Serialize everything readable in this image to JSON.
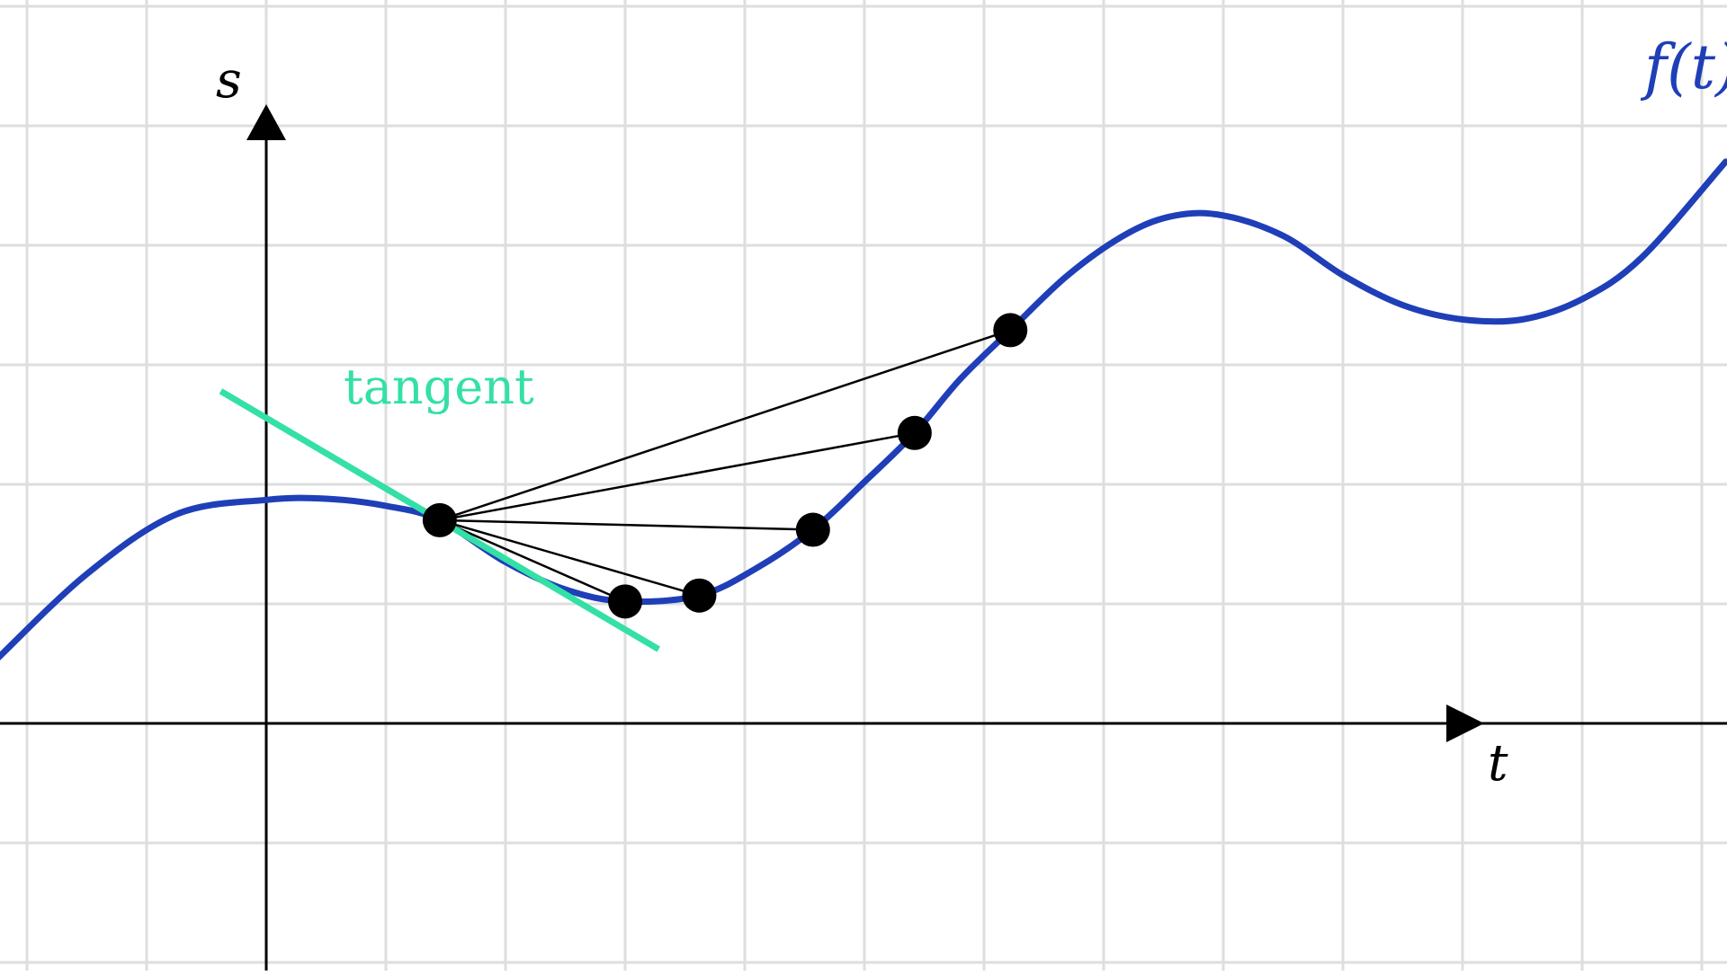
{
  "diagram": {
    "axis_labels": {
      "horizontal": "t",
      "vertical": "s"
    },
    "function_label": "f(t)",
    "tangent_label": "tangent",
    "colors": {
      "background": "#ffffff",
      "grid": "#dedede",
      "axes": "#000000",
      "curve": "#1f3fb8",
      "tangent": "#33e0a6",
      "secants": "#000000",
      "points": "#000000"
    },
    "grid": true,
    "base_point": {
      "t": 1.45,
      "s": 1.7
    },
    "secant_points": [
      {
        "t": 3.0,
        "s": 1.02
      },
      {
        "t": 3.62,
        "s": 1.07
      },
      {
        "t": 4.57,
        "s": 1.62
      },
      {
        "t": 5.42,
        "s": 2.43
      },
      {
        "t": 6.22,
        "s": 3.29
      }
    ],
    "curve_points": [
      [
        -2.24,
        0.55
      ],
      [
        -1.5,
        1.25
      ],
      [
        -0.75,
        1.75
      ],
      [
        0.0,
        1.87
      ],
      [
        0.5,
        1.88
      ],
      [
        1.0,
        1.82
      ],
      [
        1.45,
        1.7
      ],
      [
        2.0,
        1.35
      ],
      [
        2.5,
        1.12
      ],
      [
        3.0,
        1.02
      ],
      [
        3.62,
        1.07
      ],
      [
        4.1,
        1.3
      ],
      [
        4.57,
        1.62
      ],
      [
        5.0,
        2.02
      ],
      [
        5.42,
        2.43
      ],
      [
        5.8,
        2.88
      ],
      [
        6.22,
        3.29
      ],
      [
        6.7,
        3.75
      ],
      [
        7.2,
        4.1
      ],
      [
        7.6,
        4.25
      ],
      [
        8.0,
        4.25
      ],
      [
        8.5,
        4.08
      ],
      [
        9.0,
        3.75
      ],
      [
        9.5,
        3.5
      ],
      [
        10.0,
        3.38
      ],
      [
        10.5,
        3.38
      ],
      [
        11.0,
        3.55
      ],
      [
        11.5,
        3.9
      ],
      [
        12.2,
        4.7
      ]
    ],
    "tangent_segment": [
      [
        -0.38,
        2.78
      ],
      [
        3.28,
        0.62
      ]
    ]
  }
}
